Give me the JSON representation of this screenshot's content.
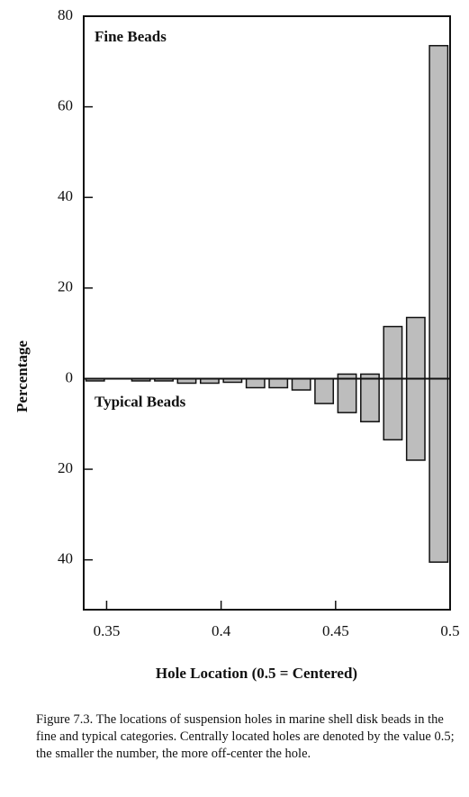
{
  "chart_data": {
    "type": "bar",
    "xlabel": "Hole Location (0.5 = Centered)",
    "ylabel": "Percentage",
    "caption": "Figure 7.3. The locations of suspension holes in marine shell disk beads in the fine and typical categories. Centrally located holes are denoted by the value 0.5; the smaller the number, the more off-center the hole.",
    "x": [
      0.345,
      0.355,
      0.365,
      0.375,
      0.385,
      0.395,
      0.405,
      0.415,
      0.425,
      0.435,
      0.445,
      0.455,
      0.465,
      0.475,
      0.485,
      0.495
    ],
    "series": [
      {
        "name": "Fine Beads",
        "color": "#bdbdbd",
        "values": [
          0,
          0,
          0,
          0,
          0,
          0,
          0,
          0,
          0,
          0,
          0,
          1,
          1,
          11.5,
          13.5,
          73.5
        ]
      },
      {
        "name": "Typical Beads",
        "color": "#bdbdbd",
        "values": [
          -0.5,
          0,
          -0.5,
          -0.5,
          -1,
          -1,
          -0.8,
          -2,
          -2,
          -2.5,
          -5.5,
          -7.5,
          -9.5,
          -13.5,
          -18,
          -40.5
        ]
      }
    ],
    "xlim": [
      0.34,
      0.5
    ],
    "xticks": [
      0.35,
      0.4,
      0.45,
      0.5
    ],
    "ylim": [
      -51,
      80
    ],
    "yticks": [
      80,
      60,
      40,
      20,
      0,
      {
        "value": -20,
        "label": "20"
      },
      {
        "value": -40,
        "label": "40"
      }
    ]
  }
}
